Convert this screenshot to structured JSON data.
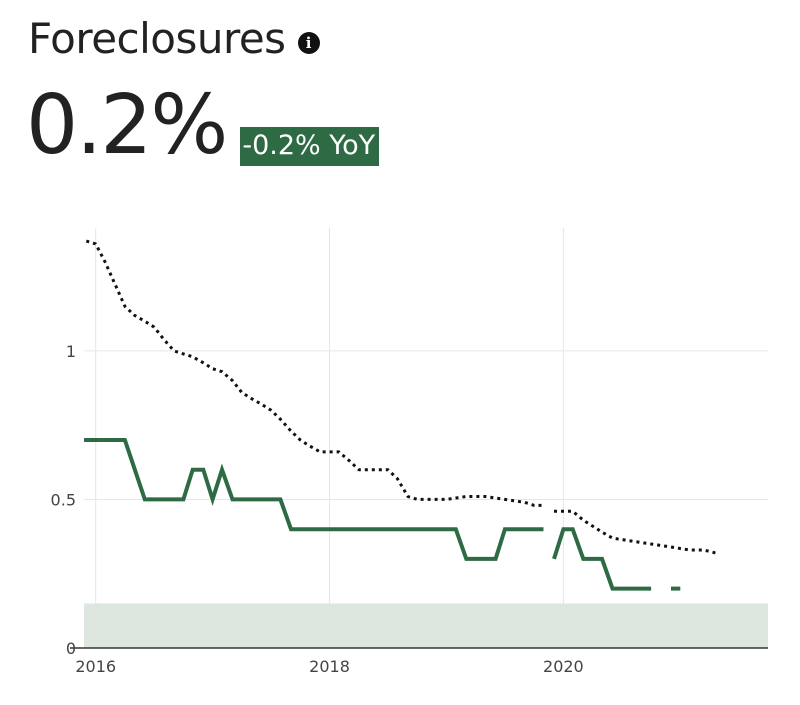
{
  "header": {
    "title": "Foreclosures",
    "info_icon": "info-icon",
    "value": "0.2%",
    "yoy": "-0.2% YoY"
  },
  "colors": {
    "series": "#2e6b45",
    "benchmark": "#111111",
    "badge": "#2e6b45",
    "band": "#dde6df",
    "grid": "#e6e6e6"
  },
  "chart_data": {
    "type": "line",
    "title": "",
    "xlabel": "",
    "ylabel": "",
    "xlim": [
      2015.9,
      2021.75
    ],
    "ylim": [
      0,
      1.38
    ],
    "x_ticks": [
      {
        "value": 2016,
        "label": "2016"
      },
      {
        "value": 2018,
        "label": "2018"
      },
      {
        "value": 2020,
        "label": "2020"
      }
    ],
    "y_ticks": [
      {
        "value": 0,
        "label": "0"
      },
      {
        "value": 0.5,
        "label": "0.5"
      },
      {
        "value": 1,
        "label": "1"
      }
    ],
    "grid": true,
    "band": {
      "y0": 0,
      "y1": 0.15
    },
    "series": [
      {
        "style": "solid",
        "segments": [
          [
            [
              2015.9,
              0.7
            ],
            [
              2016.25,
              0.7
            ],
            [
              2016.42,
              0.5
            ],
            [
              2016.75,
              0.5
            ],
            [
              2016.83,
              0.6
            ],
            [
              2016.92,
              0.6
            ],
            [
              2017.0,
              0.5
            ],
            [
              2017.08,
              0.6
            ],
            [
              2017.17,
              0.5
            ],
            [
              2017.58,
              0.5
            ],
            [
              2017.67,
              0.4
            ],
            [
              2019.08,
              0.4
            ],
            [
              2019.17,
              0.3
            ],
            [
              2019.42,
              0.3
            ],
            [
              2019.5,
              0.4
            ],
            [
              2019.83,
              0.4
            ]
          ],
          [
            [
              2019.92,
              0.3
            ],
            [
              2020.0,
              0.4
            ],
            [
              2020.08,
              0.4
            ],
            [
              2020.17,
              0.3
            ],
            [
              2020.33,
              0.3
            ],
            [
              2020.42,
              0.2
            ],
            [
              2020.75,
              0.2
            ]
          ],
          [
            [
              2020.92,
              0.2
            ],
            [
              2021.0,
              0.2
            ]
          ]
        ]
      },
      {
        "style": "dotted",
        "segments": [
          [
            [
              2015.92,
              1.37
            ],
            [
              2016.0,
              1.36
            ],
            [
              2016.08,
              1.3
            ],
            [
              2016.17,
              1.22
            ],
            [
              2016.25,
              1.15
            ],
            [
              2016.33,
              1.12
            ],
            [
              2016.42,
              1.1
            ],
            [
              2016.5,
              1.08
            ],
            [
              2016.58,
              1.04
            ],
            [
              2016.67,
              1.0
            ],
            [
              2016.75,
              0.99
            ],
            [
              2016.83,
              0.98
            ],
            [
              2016.92,
              0.96
            ],
            [
              2017.0,
              0.94
            ],
            [
              2017.08,
              0.93
            ],
            [
              2017.17,
              0.9
            ],
            [
              2017.25,
              0.86
            ],
            [
              2017.33,
              0.84
            ],
            [
              2017.42,
              0.82
            ],
            [
              2017.5,
              0.8
            ],
            [
              2017.58,
              0.77
            ],
            [
              2017.67,
              0.73
            ],
            [
              2017.75,
              0.7
            ],
            [
              2017.83,
              0.68
            ],
            [
              2017.92,
              0.66
            ],
            [
              2018.08,
              0.66
            ],
            [
              2018.17,
              0.63
            ],
            [
              2018.25,
              0.6
            ],
            [
              2018.33,
              0.6
            ],
            [
              2018.5,
              0.6
            ],
            [
              2018.58,
              0.57
            ],
            [
              2018.67,
              0.51
            ],
            [
              2018.75,
              0.5
            ],
            [
              2019.0,
              0.5
            ],
            [
              2019.17,
              0.51
            ],
            [
              2019.33,
              0.51
            ],
            [
              2019.5,
              0.5
            ],
            [
              2019.67,
              0.49
            ],
            [
              2019.75,
              0.48
            ],
            [
              2019.83,
              0.48
            ]
          ],
          [
            [
              2019.92,
              0.46
            ],
            [
              2020.08,
              0.46
            ],
            [
              2020.17,
              0.43
            ],
            [
              2020.33,
              0.39
            ],
            [
              2020.42,
              0.37
            ],
            [
              2020.58,
              0.36
            ],
            [
              2020.75,
              0.35
            ],
            [
              2020.92,
              0.34
            ],
            [
              2021.08,
              0.33
            ],
            [
              2021.2,
              0.33
            ],
            [
              2021.3,
              0.32
            ]
          ]
        ]
      }
    ]
  }
}
